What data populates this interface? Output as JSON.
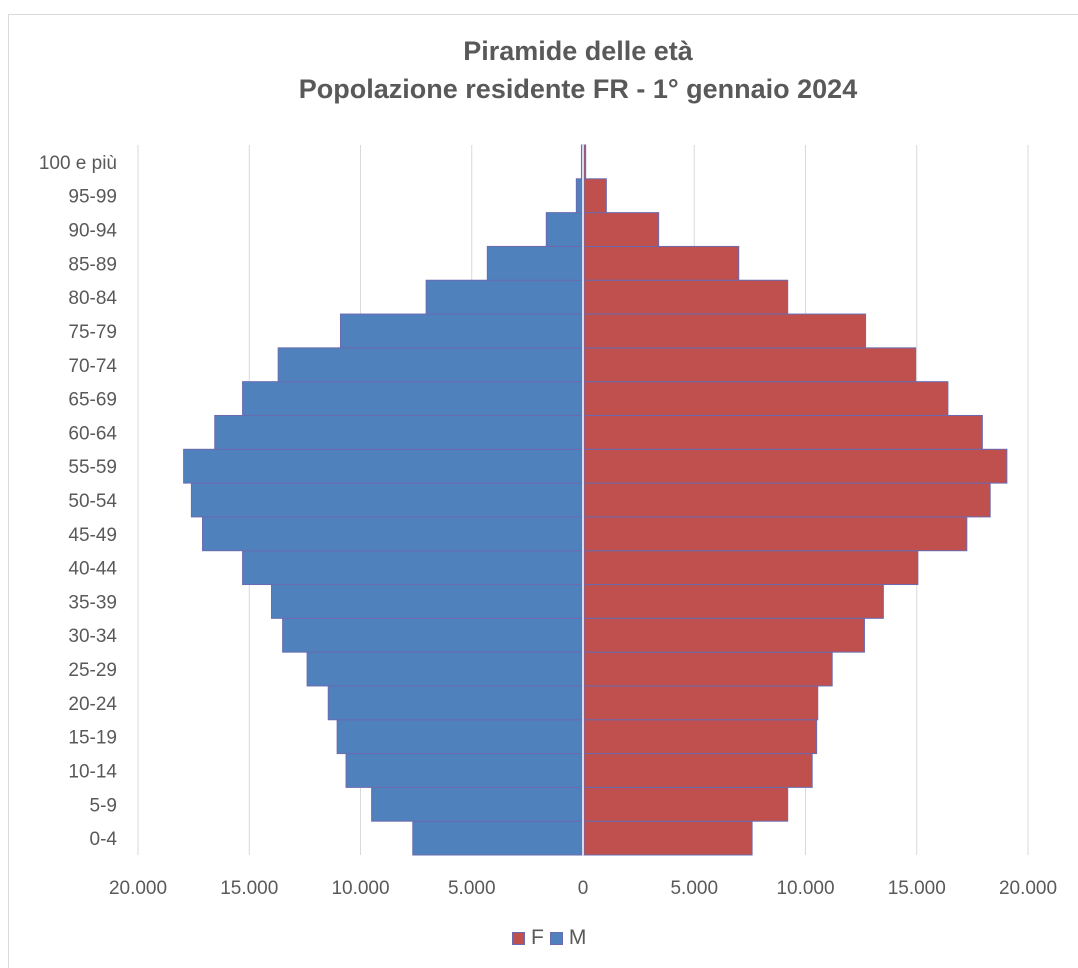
{
  "chart_data": {
    "type": "bar",
    "orientation": "horizontal",
    "title": "Piramide delle età",
    "subtitle": "Popolazione residente FR - 1° gennaio 2024",
    "categories": [
      "0-4",
      "5-9",
      "10-14",
      "15-19",
      "20-24",
      "25-29",
      "30-34",
      "35-39",
      "40-44",
      "45-49",
      "50-54",
      "55-59",
      "60-64",
      "65-69",
      "70-74",
      "75-79",
      "80-84",
      "85-89",
      "90-94",
      "95-99",
      "100 e più"
    ],
    "series": [
      {
        "name": "F",
        "color": "#c0504d",
        "side": "right",
        "values": [
          7600,
          9200,
          10300,
          10500,
          10550,
          11200,
          12650,
          13500,
          15050,
          17250,
          18300,
          19050,
          17950,
          16400,
          14950,
          12700,
          9200,
          7000,
          3400,
          1050,
          120
        ]
      },
      {
        "name": "M",
        "color": "#4f81bd",
        "side": "left",
        "values": [
          7650,
          9500,
          10650,
          11050,
          11450,
          12400,
          13500,
          14000,
          15300,
          17100,
          17600,
          17950,
          16550,
          15300,
          13700,
          10900,
          7050,
          4300,
          1650,
          300,
          70
        ]
      }
    ],
    "xlim": [
      -20000,
      20000
    ],
    "x_ticks": [
      "20.000",
      "15.000",
      "10.000",
      "5.000",
      "0",
      "5.000",
      "10.000",
      "15.000",
      "20.000"
    ],
    "grid": true,
    "legend_position": "bottom"
  },
  "legend": {
    "f_label": "F",
    "m_label": "M"
  }
}
